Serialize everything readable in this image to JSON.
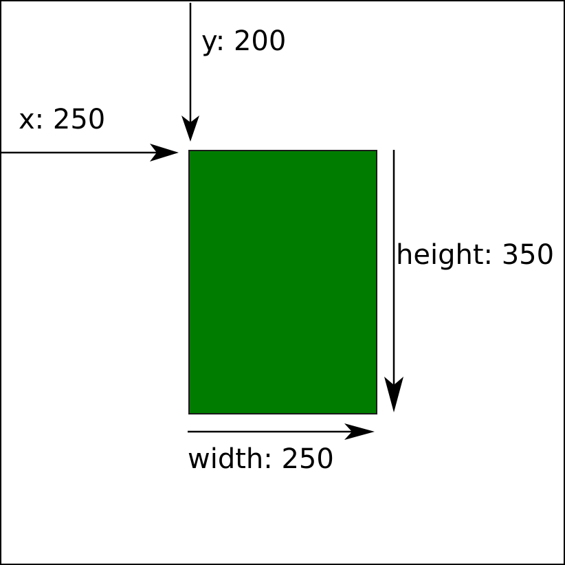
{
  "diagram": {
    "labels": {
      "x": "x: 250",
      "y": "y: 200",
      "width": "width: 250",
      "height": "height: 350"
    },
    "rect_color": "#007d00",
    "border_color": "#000000",
    "background_color": "#ffffff"
  }
}
